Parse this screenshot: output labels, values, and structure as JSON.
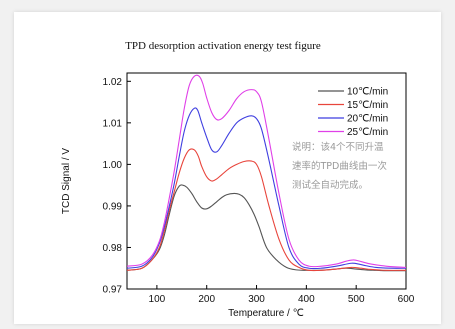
{
  "chart_data": {
    "type": "line",
    "title": "TPD desorption activation energy test figure",
    "xlabel": "Temperature / ℃",
    "ylabel": "TCD Signal / V",
    "xlim": [
      40,
      600
    ],
    "ylim": [
      0.97,
      1.022
    ],
    "xticks": [
      100,
      200,
      300,
      400,
      500,
      600
    ],
    "yticks": [
      0.97,
      0.98,
      0.99,
      1.0,
      1.01,
      1.02
    ],
    "xtick_labels": [
      "100",
      "200",
      "300",
      "400",
      "500",
      "600"
    ],
    "ytick_labels": [
      "0.97",
      "0.98",
      "0.99",
      "1.00",
      "1.01",
      "1.02"
    ],
    "grid": false,
    "legend_position": "top-right",
    "annotation_lines": [
      "说明：该4个不同升温",
      "速率的TPD曲线由一次",
      "测试全自动完成。"
    ],
    "series": [
      {
        "name": "10℃/min",
        "color": "#555555",
        "x": [
          40,
          70,
          90,
          105,
          115,
          125,
          135,
          145,
          152,
          160,
          170,
          180,
          190,
          200,
          210,
          220,
          230,
          240,
          255,
          265,
          275,
          285,
          295,
          305,
          320,
          340,
          360,
          380,
          400,
          420,
          440,
          460,
          480,
          500,
          520,
          540,
          560,
          580,
          600
        ],
        "y": [
          0.9745,
          0.975,
          0.977,
          0.9795,
          0.983,
          0.988,
          0.9925,
          0.9948,
          0.995,
          0.9945,
          0.993,
          0.991,
          0.9895,
          0.9893,
          0.99,
          0.991,
          0.992,
          0.9927,
          0.993,
          0.9928,
          0.992,
          0.9903,
          0.988,
          0.985,
          0.98,
          0.977,
          0.9752,
          0.9746,
          0.9745,
          0.9745,
          0.9746,
          0.9748,
          0.975,
          0.9748,
          0.9746,
          0.9745,
          0.9744,
          0.9744,
          0.9744
        ]
      },
      {
        "name": "15℃/min",
        "color": "#e8453c",
        "x": [
          40,
          70,
          90,
          105,
          115,
          125,
          135,
          145,
          155,
          165,
          175,
          183,
          190,
          200,
          210,
          220,
          230,
          245,
          260,
          275,
          290,
          300,
          310,
          325,
          345,
          365,
          385,
          405,
          430,
          460,
          490,
          510,
          530,
          560,
          600
        ],
        "y": [
          0.9745,
          0.975,
          0.977,
          0.98,
          0.984,
          0.989,
          0.9935,
          0.998,
          1.0015,
          1.0035,
          1.0035,
          1.002,
          0.9995,
          0.997,
          0.996,
          0.9965,
          0.9975,
          0.999,
          1.0,
          1.0007,
          1.0008,
          1.0,
          0.997,
          0.99,
          0.982,
          0.977,
          0.9752,
          0.9745,
          0.9745,
          0.9748,
          0.9752,
          0.975,
          0.9747,
          0.9745,
          0.9745
        ]
      },
      {
        "name": "20℃/min",
        "color": "#3f3fe0",
        "x": [
          40,
          70,
          90,
          105,
          115,
          125,
          135,
          145,
          155,
          165,
          175,
          182,
          190,
          200,
          210,
          220,
          230,
          245,
          260,
          275,
          290,
          300,
          310,
          325,
          345,
          365,
          385,
          405,
          430,
          460,
          490,
          505,
          520,
          540,
          570,
          600
        ],
        "y": [
          0.975,
          0.9755,
          0.9775,
          0.981,
          0.985,
          0.99,
          0.9955,
          1.002,
          1.008,
          1.0118,
          1.0135,
          1.013,
          1.01,
          1.0065,
          1.0035,
          1.003,
          1.0045,
          1.0075,
          1.01,
          1.0112,
          1.0117,
          1.011,
          1.0085,
          1.001,
          0.99,
          0.98,
          0.976,
          0.975,
          0.975,
          0.9755,
          0.9762,
          0.976,
          0.9756,
          0.9752,
          0.975,
          0.975
        ]
      },
      {
        "name": "25℃/min",
        "color": "#e040e8",
        "x": [
          40,
          70,
          90,
          105,
          115,
          125,
          135,
          145,
          155,
          165,
          175,
          185,
          192,
          200,
          210,
          220,
          230,
          245,
          260,
          275,
          290,
          300,
          310,
          325,
          345,
          365,
          385,
          405,
          430,
          460,
          480,
          495,
          510,
          530,
          560,
          600
        ],
        "y": [
          0.9755,
          0.976,
          0.978,
          0.9815,
          0.986,
          0.992,
          0.9985,
          1.006,
          1.0135,
          1.019,
          1.0212,
          1.0212,
          1.0195,
          1.016,
          1.0125,
          1.0108,
          1.011,
          1.013,
          1.0158,
          1.0175,
          1.018,
          1.0175,
          1.015,
          1.006,
          0.993,
          0.982,
          0.977,
          0.9755,
          0.9755,
          0.976,
          0.9767,
          0.977,
          0.9766,
          0.976,
          0.9755,
          0.9752
        ]
      }
    ]
  }
}
